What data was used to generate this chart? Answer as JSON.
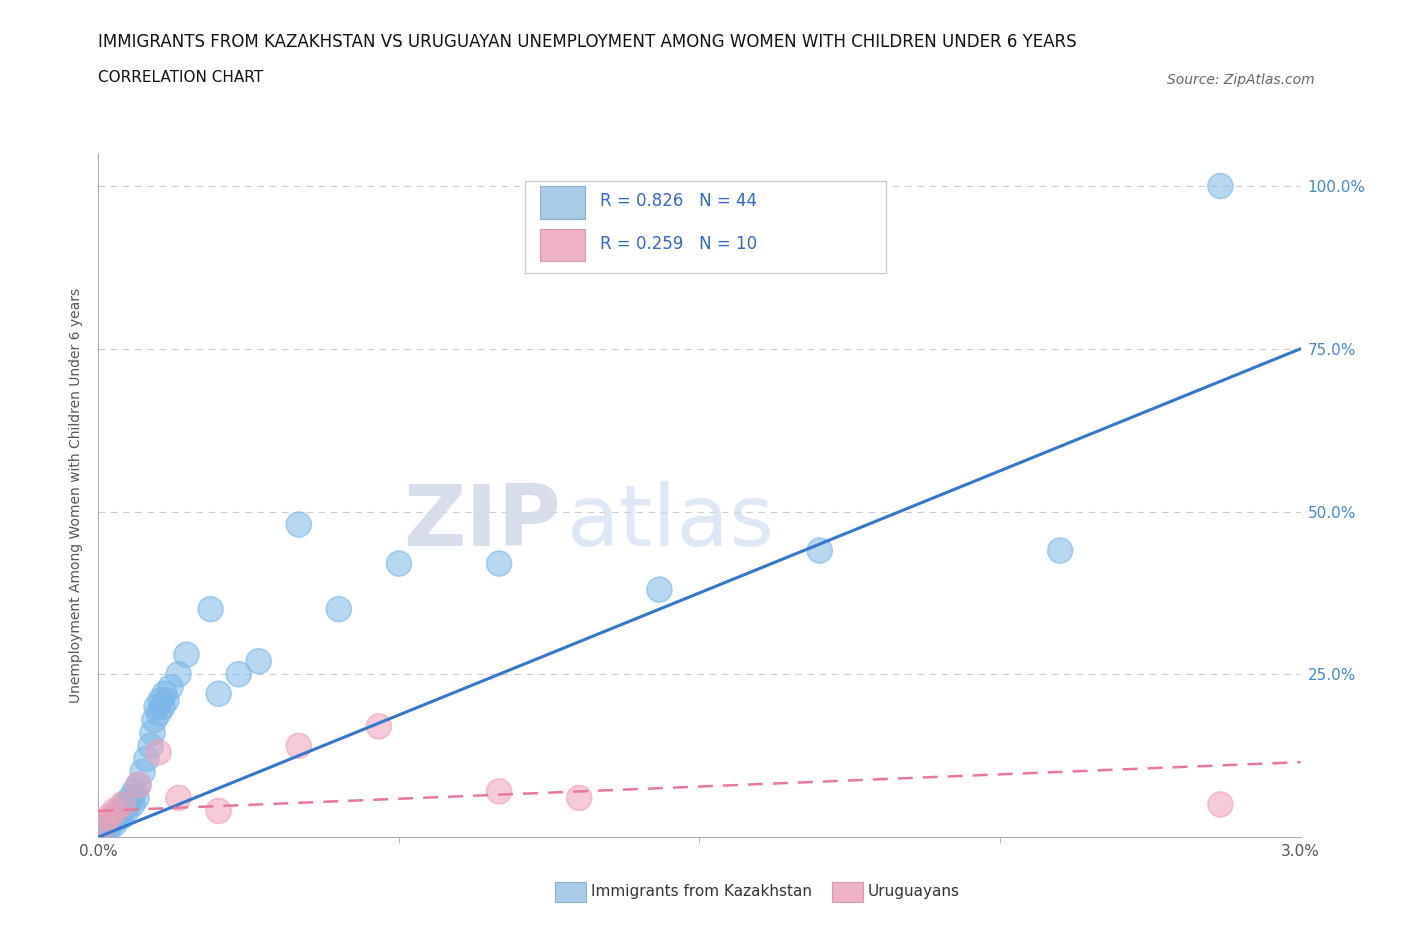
{
  "title": "IMMIGRANTS FROM KAZAKHSTAN VS URUGUAYAN UNEMPLOYMENT AMONG WOMEN WITH CHILDREN UNDER 6 YEARS",
  "subtitle": "CORRELATION CHART",
  "source": "Source: ZipAtlas.com",
  "xlim": [
    0.0,
    0.03
  ],
  "ylim": [
    0.0,
    1.05
  ],
  "kaz_scatter": [
    [
      0.00015,
      0.01
    ],
    [
      0.0002,
      0.02
    ],
    [
      0.00025,
      0.01
    ],
    [
      0.0003,
      0.02
    ],
    [
      0.00035,
      0.03
    ],
    [
      0.0004,
      0.02
    ],
    [
      0.00045,
      0.03
    ],
    [
      0.0005,
      0.04
    ],
    [
      0.00055,
      0.03
    ],
    [
      0.0006,
      0.04
    ],
    [
      0.00065,
      0.05
    ],
    [
      0.0007,
      0.04
    ],
    [
      0.00075,
      0.05
    ],
    [
      0.0008,
      0.06
    ],
    [
      0.00085,
      0.05
    ],
    [
      0.0009,
      0.07
    ],
    [
      0.00095,
      0.06
    ],
    [
      0.001,
      0.08
    ],
    [
      0.0011,
      0.1
    ],
    [
      0.0012,
      0.12
    ],
    [
      0.0013,
      0.14
    ],
    [
      0.00135,
      0.16
    ],
    [
      0.0014,
      0.18
    ],
    [
      0.00145,
      0.2
    ],
    [
      0.0015,
      0.19
    ],
    [
      0.00155,
      0.21
    ],
    [
      0.0016,
      0.2
    ],
    [
      0.00165,
      0.22
    ],
    [
      0.0017,
      0.21
    ],
    [
      0.0018,
      0.23
    ],
    [
      0.002,
      0.25
    ],
    [
      0.0022,
      0.28
    ],
    [
      0.0028,
      0.35
    ],
    [
      0.003,
      0.22
    ],
    [
      0.0035,
      0.25
    ],
    [
      0.004,
      0.27
    ],
    [
      0.005,
      0.48
    ],
    [
      0.006,
      0.35
    ],
    [
      0.0075,
      0.42
    ],
    [
      0.01,
      0.42
    ],
    [
      0.014,
      0.38
    ],
    [
      0.018,
      0.44
    ],
    [
      0.024,
      0.44
    ],
    [
      0.028,
      1.0
    ]
  ],
  "uru_scatter": [
    [
      0.00015,
      0.02
    ],
    [
      0.00025,
      0.03
    ],
    [
      0.0004,
      0.04
    ],
    [
      0.0006,
      0.05
    ],
    [
      0.001,
      0.08
    ],
    [
      0.0015,
      0.13
    ],
    [
      0.002,
      0.06
    ],
    [
      0.003,
      0.04
    ],
    [
      0.005,
      0.14
    ],
    [
      0.007,
      0.17
    ],
    [
      0.01,
      0.07
    ],
    [
      0.012,
      0.06
    ],
    [
      0.028,
      0.05
    ]
  ],
  "kaz_line_x": [
    0.0,
    0.03
  ],
  "kaz_line_y": [
    0.0,
    0.75
  ],
  "uru_line_x": [
    0.0,
    0.03
  ],
  "uru_line_y": [
    0.04,
    0.115
  ],
  "kaz_color": "#7ab8e8",
  "uru_color": "#f0a0b8",
  "kaz_line_color": "#3377cc",
  "uru_line_color": "#e87898",
  "background_color": "#ffffff",
  "title_fontsize": 12,
  "subtitle_fontsize": 11,
  "source_fontsize": 10,
  "tick_color": "#4488cc",
  "axis_color": "#aaaaaa"
}
